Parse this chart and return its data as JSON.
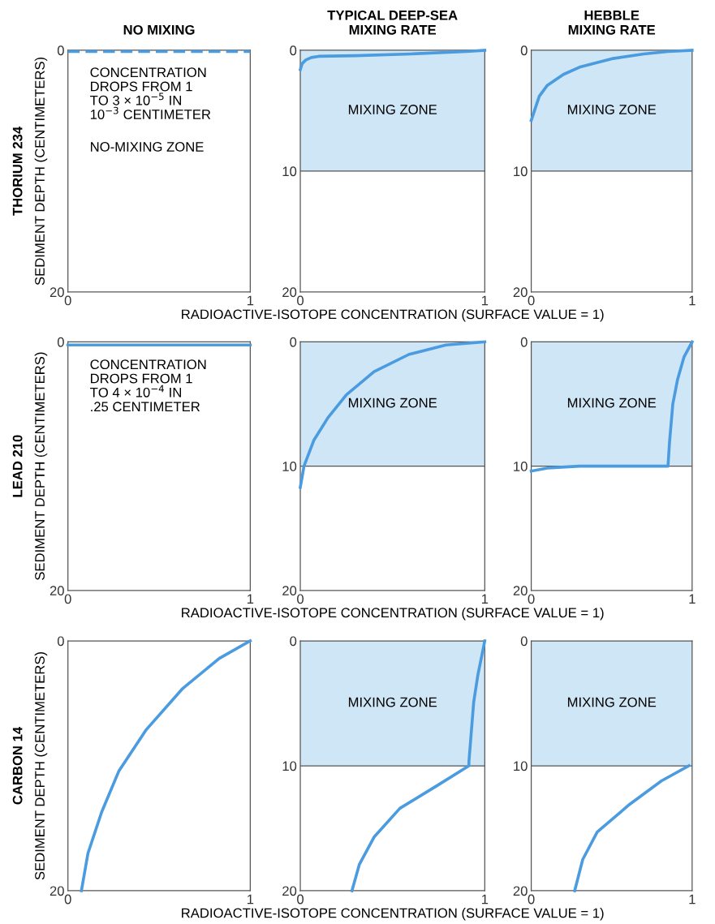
{
  "chart_data": [
    {
      "type": "line",
      "title": "NO MIXING",
      "subtitle": "THORIUM 234",
      "ylabel": "SEDIMENT DEPTH (CENTIMETERS)",
      "xlim": [
        0,
        1
      ],
      "xticks": [
        0,
        1
      ],
      "ylim": [
        20,
        0
      ],
      "yticks": [
        0,
        20
      ],
      "line_style": "dashed",
      "series": [
        {
          "color": "#4a9be0",
          "x": [
            0,
            1
          ],
          "values": [
            0.1,
            0.1
          ]
        }
      ],
      "annotations": [
        "CONCENTRATION\nDROPS FROM 1\nTO 3 × 10$^{−5}$ IN\n10$^{−3}$ CENTIMETER",
        "NO-MIXING ZONE"
      ]
    },
    {
      "type": "line",
      "title": "TYPICAL DEEP-SEA\nMIXING RATE",
      "xlabel": "RADIOACTIVE-ISOTOPE CONCENTRATION (SURFACE VALUE = 1)",
      "xlim": [
        0,
        1
      ],
      "xticks": [
        0,
        1
      ],
      "ylim": [
        20,
        0
      ],
      "yticks": [
        0,
        10,
        20
      ],
      "series": [
        {
          "color": "#4a9be0",
          "x": [
            0,
            0.01,
            0.03,
            0.06,
            0.1,
            0.3,
            0.6,
            0.9,
            1
          ],
          "values": [
            1.6,
            1.1,
            0.8,
            0.6,
            0.5,
            0.45,
            0.3,
            0.1,
            0
          ]
        }
      ],
      "bands": [
        {
          "axis": "y",
          "from": 0,
          "to": 10,
          "label": "MIXING ZONE",
          "color": "#cfe6f6"
        }
      ]
    },
    {
      "type": "line",
      "title": "HEBBLE\nMIXING RATE",
      "xlim": [
        0,
        1
      ],
      "xticks": [
        0,
        1
      ],
      "ylim": [
        20,
        0
      ],
      "yticks": [
        0,
        10,
        20
      ],
      "series": [
        {
          "color": "#4a9be0",
          "x": [
            0,
            0.05,
            0.1,
            0.2,
            0.3,
            0.5,
            0.7,
            0.85,
            1
          ],
          "values": [
            5.8,
            3.8,
            2.9,
            2.0,
            1.4,
            0.7,
            0.3,
            0.1,
            0
          ]
        }
      ],
      "bands": [
        {
          "axis": "y",
          "from": 0,
          "to": 10,
          "label": "MIXING ZONE",
          "color": "#cfe6f6"
        }
      ]
    },
    {
      "type": "line",
      "subtitle": "LEAD 210",
      "ylabel": "SEDIMENT DEPTH (CENTIMETERS)",
      "xlim": [
        0,
        1
      ],
      "xticks": [
        0,
        1
      ],
      "ylim": [
        20,
        0
      ],
      "yticks": [
        0,
        20
      ],
      "series": [
        {
          "color": "#4a9be0",
          "x": [
            0,
            1
          ],
          "values": [
            0.25,
            0.25
          ]
        }
      ],
      "annotations": [
        "CONCENTRATION\nDROPS FROM 1\nTO 4 × 10$^{−4}$ IN\n.25 CENTIMETER"
      ]
    },
    {
      "type": "line",
      "xlabel": "RADIOACTIVE-ISOTOPE CONCENTRATION (SURFACE VALUE = 1)",
      "xlim": [
        0,
        1
      ],
      "xticks": [
        0,
        1
      ],
      "ylim": [
        20,
        0
      ],
      "yticks": [
        0,
        10,
        20
      ],
      "series": [
        {
          "color": "#4a9be0",
          "x": [
            0,
            0.02,
            0.074,
            0.15,
            0.25,
            0.4,
            0.59,
            0.79,
            1
          ],
          "values": [
            11.7,
            10,
            7.9,
            6.1,
            4.25,
            2.4,
            1.0,
            0.25,
            0
          ]
        }
      ],
      "bands": [
        {
          "axis": "y",
          "from": 0,
          "to": 10,
          "label": "MIXING ZONE",
          "color": "#cfe6f6"
        }
      ]
    },
    {
      "type": "line",
      "xlim": [
        0,
        1
      ],
      "xticks": [
        0,
        1
      ],
      "ylim": [
        20,
        0
      ],
      "yticks": [
        0,
        10,
        20
      ],
      "series": [
        {
          "color": "#4a9be0",
          "x": [
            0,
            0.1,
            0.3,
            0.85,
            0.86,
            0.88,
            0.91,
            0.95,
            1
          ],
          "values": [
            10.4,
            10.15,
            10.0,
            10.0,
            8,
            5,
            3,
            1.2,
            0
          ]
        }
      ],
      "bands": [
        {
          "axis": "y",
          "from": 0,
          "to": 10,
          "label": "MIXING ZONE",
          "color": "#cfe6f6"
        }
      ]
    },
    {
      "type": "line",
      "subtitle": "CARBON 14",
      "ylabel": "SEDIMENT DEPTH (CENTIMETERS)",
      "xlim": [
        0,
        1
      ],
      "xticks": [
        0,
        1
      ],
      "ylim": [
        20,
        0
      ],
      "yticks": [
        0,
        20
      ],
      "series": [
        {
          "color": "#4a9be0",
          "x": [
            1,
            0.83,
            0.63,
            0.43,
            0.28,
            0.185,
            0.11,
            0.074
          ],
          "values": [
            0,
            1.4,
            3.8,
            7.1,
            10.4,
            13.7,
            17,
            20
          ]
        }
      ]
    },
    {
      "type": "line",
      "xlabel": "RADIOACTIVE-ISOTOPE CONCENTRATION (SURFACE VALUE = 1)",
      "xlim": [
        0,
        1
      ],
      "xticks": [
        0,
        1
      ],
      "ylim": [
        20,
        0
      ],
      "yticks": [
        0,
        10,
        20
      ],
      "series": [
        {
          "color": "#4a9be0",
          "x": [
            1,
            0.963,
            0.94,
            0.914,
            0.914,
            0.74,
            0.54,
            0.4,
            0.32,
            0.28
          ],
          "values": [
            0,
            2.7,
            4.9,
            9.7,
            10,
            11.6,
            13.4,
            15.7,
            17.9,
            20
          ]
        }
      ],
      "bands": [
        {
          "axis": "y",
          "from": 0,
          "to": 10,
          "label": "MIXING ZONE",
          "color": "#cfe6f6"
        }
      ]
    },
    {
      "type": "line",
      "xlim": [
        0,
        1
      ],
      "xticks": [
        0,
        1
      ],
      "ylim": [
        20,
        0
      ],
      "yticks": [
        0,
        10,
        20
      ],
      "series": [
        {
          "color": "#4a9be0",
          "x": [
            0.98,
            0.81,
            0.61,
            0.41,
            0.32,
            0.27
          ],
          "values": [
            10,
            11.2,
            13.1,
            15.3,
            17.5,
            20
          ]
        }
      ],
      "bands": [
        {
          "axis": "y",
          "from": 0,
          "to": 10,
          "label": "MIXING ZONE",
          "color": "#cfe6f6"
        }
      ]
    }
  ]
}
